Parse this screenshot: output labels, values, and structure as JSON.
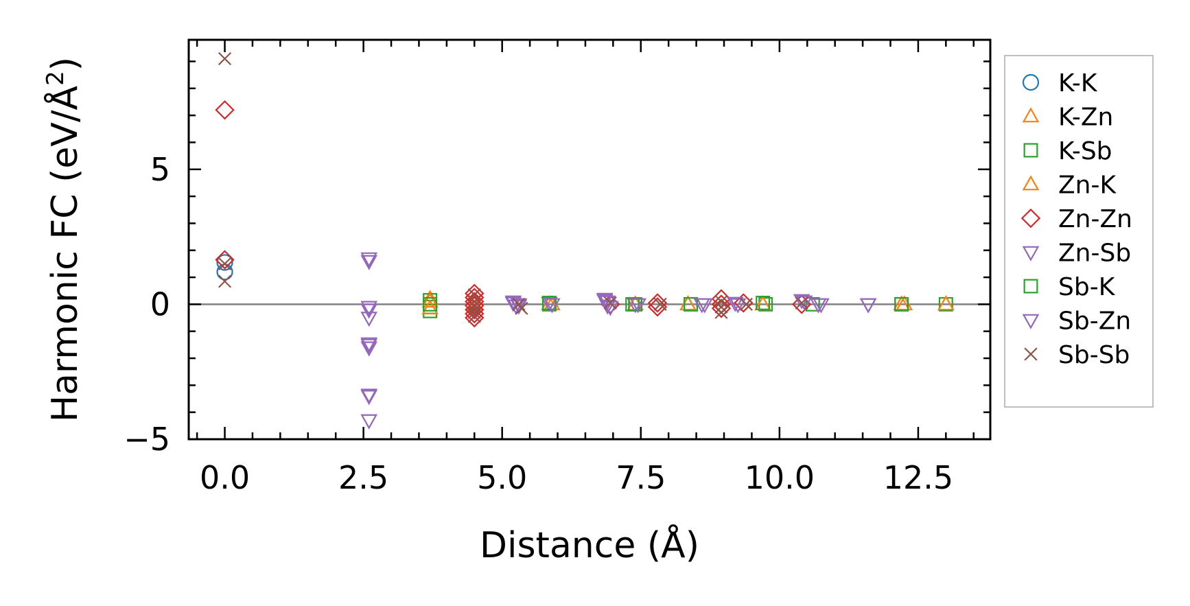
{
  "chart_data": {
    "type": "scatter",
    "title": "",
    "xlabel": "Distance (Å)",
    "ylabel_main": "Harmonic FC (eV/Å",
    "ylabel_sup": "2",
    "ylabel_close": ")",
    "xlim": [
      -0.65,
      13.8
    ],
    "ylim": [
      -5,
      9.8
    ],
    "x_ticks": [
      {
        "v": 0.0,
        "label": "0.0"
      },
      {
        "v": 2.5,
        "label": "2.5"
      },
      {
        "v": 5.0,
        "label": "5.0"
      },
      {
        "v": 7.5,
        "label": "7.5"
      },
      {
        "v": 10.0,
        "label": "10.0"
      },
      {
        "v": 12.5,
        "label": "12.5"
      }
    ],
    "y_ticks": [
      {
        "v": -5,
        "label": "−5"
      },
      {
        "v": 0,
        "label": "0"
      },
      {
        "v": 5,
        "label": "5"
      }
    ],
    "zero_line": true,
    "grid": false,
    "legend_position": "outside-right",
    "series": [
      {
        "name": "K-K",
        "marker": "circle",
        "color": "#1f77b4",
        "points": [
          [
            0.0,
            1.55
          ],
          [
            0.0,
            1.2
          ]
        ]
      },
      {
        "name": "K-Zn",
        "marker": "triangle-up",
        "color": "#ff7f0e",
        "points": [
          [
            3.7,
            0.2
          ],
          [
            5.85,
            0.0
          ],
          [
            7.4,
            0.0
          ],
          [
            8.35,
            0.0
          ],
          [
            9.7,
            0.0
          ],
          [
            12.2,
            0.0
          ],
          [
            13.0,
            0.0
          ]
        ]
      },
      {
        "name": "K-Sb",
        "marker": "square",
        "color": "#2ca02c",
        "points": [
          [
            3.7,
            0.15
          ],
          [
            3.7,
            -0.1
          ],
          [
            3.7,
            -0.25
          ],
          [
            5.85,
            0.0
          ],
          [
            7.35,
            0.0
          ],
          [
            8.4,
            0.0
          ],
          [
            9.75,
            0.0
          ],
          [
            10.6,
            0.0
          ],
          [
            12.2,
            0.0
          ],
          [
            13.0,
            0.0
          ]
        ]
      },
      {
        "name": "Zn-K",
        "marker": "triangle-up",
        "color": "#ff7f0e",
        "points": [
          [
            3.7,
            0.1
          ],
          [
            3.7,
            -0.15
          ],
          [
            4.5,
            0.0
          ],
          [
            5.9,
            0.0
          ],
          [
            8.35,
            0.0
          ],
          [
            9.7,
            0.0
          ],
          [
            12.25,
            0.0
          ],
          [
            13.0,
            0.0
          ]
        ]
      },
      {
        "name": "Zn-Zn",
        "marker": "diamond",
        "color": "#d62728",
        "points": [
          [
            0.0,
            7.2
          ],
          [
            0.0,
            1.65
          ],
          [
            4.5,
            0.4
          ],
          [
            4.5,
            0.25
          ],
          [
            4.5,
            0.1
          ],
          [
            4.5,
            -0.05
          ],
          [
            4.5,
            -0.2
          ],
          [
            4.5,
            -0.35
          ],
          [
            4.5,
            -0.5
          ],
          [
            6.95,
            0.0
          ],
          [
            7.8,
            0.05
          ],
          [
            7.8,
            -0.1
          ],
          [
            8.95,
            0.2
          ],
          [
            8.95,
            0.0
          ],
          [
            8.95,
            -0.15
          ],
          [
            9.35,
            0.05
          ],
          [
            10.4,
            0.0
          ]
        ]
      },
      {
        "name": "Zn-Sb",
        "marker": "triangle-down",
        "color": "#9467bd",
        "points": [
          [
            2.6,
            1.7
          ],
          [
            2.6,
            -0.2
          ],
          [
            2.6,
            -0.5
          ],
          [
            2.6,
            -1.45
          ],
          [
            2.6,
            -1.6
          ],
          [
            2.6,
            -3.4
          ],
          [
            2.6,
            -4.3
          ],
          [
            5.2,
            0.1
          ],
          [
            5.25,
            -0.05
          ],
          [
            5.3,
            0.0
          ],
          [
            5.85,
            0.05
          ],
          [
            6.85,
            0.2
          ],
          [
            6.9,
            0.1
          ],
          [
            6.95,
            -0.1
          ],
          [
            7.4,
            0.0
          ],
          [
            8.65,
            0.0
          ],
          [
            9.25,
            0.0
          ],
          [
            10.4,
            0.15
          ],
          [
            10.7,
            0.0
          ],
          [
            11.6,
            0.0
          ]
        ]
      },
      {
        "name": "Sb-K",
        "marker": "square",
        "color": "#2ca02c",
        "points": [
          [
            3.7,
            0.0
          ],
          [
            5.85,
            0.05
          ],
          [
            7.4,
            0.0
          ],
          [
            8.4,
            0.0
          ],
          [
            9.7,
            0.05
          ],
          [
            12.2,
            0.0
          ]
        ]
      },
      {
        "name": "Sb-Zn",
        "marker": "triangle-down",
        "color": "#9467bd",
        "points": [
          [
            2.6,
            1.6
          ],
          [
            2.6,
            -0.1
          ],
          [
            2.6,
            -1.5
          ],
          [
            2.6,
            -3.35
          ],
          [
            5.2,
            0.05
          ],
          [
            5.3,
            -0.05
          ],
          [
            5.9,
            0.0
          ],
          [
            6.85,
            0.15
          ],
          [
            6.9,
            -0.05
          ],
          [
            7.45,
            0.0
          ],
          [
            8.6,
            0.0
          ],
          [
            9.2,
            0.05
          ],
          [
            10.45,
            0.1
          ],
          [
            10.75,
            0.0
          ],
          [
            11.6,
            0.0
          ]
        ]
      },
      {
        "name": "Sb-Sb",
        "marker": "x",
        "color": "#8c564b",
        "points": [
          [
            0.0,
            9.1
          ],
          [
            0.0,
            1.5
          ],
          [
            0.0,
            0.85
          ],
          [
            4.5,
            0.35
          ],
          [
            4.5,
            0.1
          ],
          [
            4.5,
            -0.1
          ],
          [
            4.5,
            -0.3
          ],
          [
            4.5,
            -0.45
          ],
          [
            5.3,
            0.0
          ],
          [
            5.35,
            -0.15
          ],
          [
            6.95,
            0.05
          ],
          [
            7.85,
            0.0
          ],
          [
            8.95,
            0.1
          ],
          [
            8.95,
            -0.1
          ],
          [
            8.95,
            -0.3
          ],
          [
            9.4,
            0.0
          ],
          [
            10.4,
            0.05
          ]
        ]
      }
    ]
  }
}
